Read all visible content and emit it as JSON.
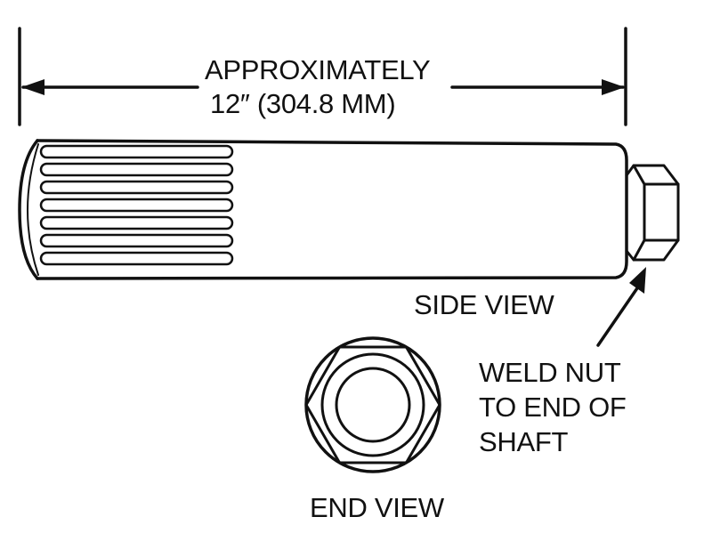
{
  "dimension": {
    "line1": "APPROXIMATELY",
    "line2": "12″ (304.8 MM)"
  },
  "side_view_label": "SIDE VIEW",
  "end_view_label": "END VIEW",
  "callout": {
    "line1": "WELD NUT",
    "line2": "TO END OF",
    "line3": "SHAFT"
  },
  "colors": {
    "ink": "#111111",
    "paper": "#ffffff"
  }
}
